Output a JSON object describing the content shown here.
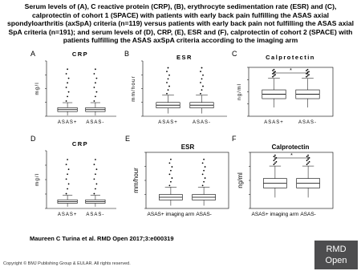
{
  "header": {
    "title": "Serum levels of (A), C reactive protein (CRP), (B), erythrocyte sedimentation rate (ESR) and (C), calprotectin of cohort 1 (SPACE) with patients with early back pain fulfilling the ASAS axial spondyloarthritis (axSpA) criteria (n=119) versus patients with early back pain not fulfilling the ASAS axial SpA criteria (n=191); and serum levels of (D), CRP, (E), ESR and (F), calprotectin of cohort 2 (SPACE) with patients fulfilling the ASAS axSpA criteria according to the imaging arm"
  },
  "panels": [
    {
      "letter": "A",
      "title": "CRP",
      "y_label": "mg/l",
      "x_labels": [
        "ASAS+",
        "ASAS-"
      ]
    },
    {
      "letter": "B",
      "title": "ESR",
      "y_label": "mm/hour",
      "x_labels": [
        "ASAS+",
        "ASAS-"
      ]
    },
    {
      "letter": "C",
      "title": "Calprotectin",
      "y_label": "ng/ml",
      "x_labels": [
        "ASAS+",
        "ASAS-"
      ],
      "significance": "*"
    },
    {
      "letter": "D",
      "title": "CRP",
      "y_label": "mg/l",
      "x_labels": [
        "ASAS+",
        "ASAS-"
      ]
    },
    {
      "letter": "E",
      "title": "ESR",
      "y_label": "mm/hour",
      "x_labels": [
        "ASAS+ imaging arm",
        "ASAS-"
      ]
    },
    {
      "letter": "F",
      "title": "Calprotectin",
      "y_label": "ng/ml",
      "x_labels": [
        "ASAS+ imaging arm",
        "ASAS-"
      ],
      "significance": "*"
    }
  ],
  "citation": "Maureen C Turina et al. RMD Open 2017;3:e000319",
  "copyright": "Copyright © BMJ Publishing Group & EULAR. All rights reserved.",
  "logo": {
    "line1": "RMD",
    "line2": "Open"
  }
}
